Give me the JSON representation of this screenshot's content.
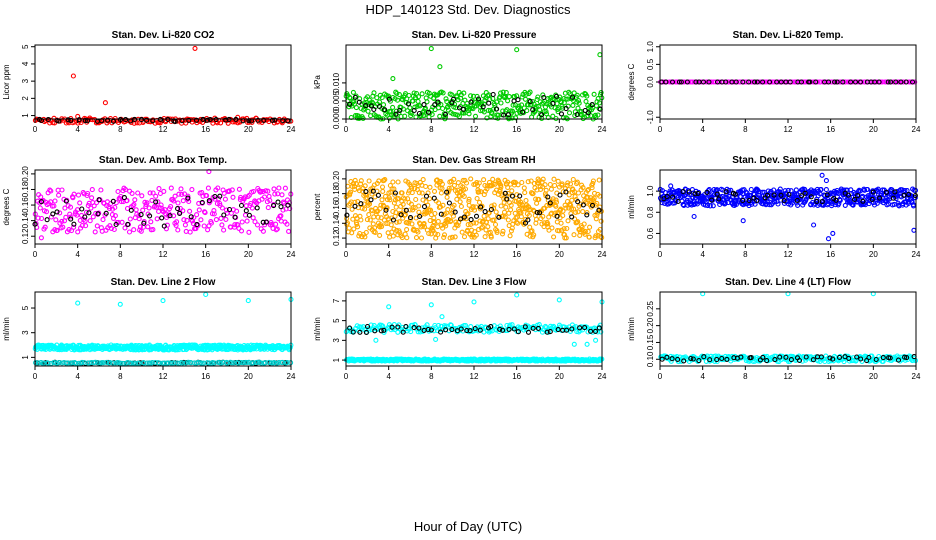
{
  "title": "HDP_140123  Std. Dev. Diagnostics",
  "xlabel": "Hour of Day (UTC)",
  "chart_data": [
    {
      "type": "scatter",
      "title": "Stan. Dev. Li-820 CO2",
      "ylabel": "Licor ppm",
      "xlim": [
        0,
        24
      ],
      "ylim": [
        0.8,
        5.1
      ],
      "xticks": [
        "0",
        "4",
        "8",
        "12",
        "16",
        "20",
        "24"
      ],
      "yticks": [
        "1",
        "2",
        "3",
        "4",
        "5"
      ],
      "series": [
        {
          "color": "#ff0000",
          "band": [
            0.55,
            0.85
          ],
          "density": 170,
          "jitter": 0.1,
          "outliers": [
            [
              3.6,
              3.3
            ],
            [
              6.6,
              1.75
            ],
            [
              15.0,
              4.9
            ],
            [
              4.0,
              0.95
            ],
            [
              19.0,
              0.9
            ]
          ]
        },
        {
          "color": "#000000",
          "band": [
            0.65,
            0.78
          ],
          "density": 44,
          "jitter": 0.25
        }
      ]
    },
    {
      "type": "scatter",
      "title": "Stan. Dev. Li-820 Pressure",
      "ylabel": "kPa",
      "xlim": [
        0,
        24
      ],
      "ylim": [
        0,
        0.0205
      ],
      "xticks": [
        "0",
        "4",
        "8",
        "12",
        "16",
        "20",
        "24"
      ],
      "yticks": [
        "0.000",
        "0.005",
        "0.010"
      ],
      "series": [
        {
          "color": "#00cc00",
          "band": [
            0.0,
            0.0075
          ],
          "density": 400,
          "jitter": 0.1,
          "outliers": [
            [
              8.0,
              0.0195
            ],
            [
              16.0,
              0.0192
            ],
            [
              23.8,
              0.0178
            ],
            [
              8.8,
              0.0145
            ],
            [
              4.4,
              0.0112
            ]
          ]
        },
        {
          "color": "#000000",
          "band": [
            0.001,
            0.007
          ],
          "density": 48,
          "jitter": 0.25
        }
      ]
    },
    {
      "type": "scatter",
      "title": "Stan. Dev. Li-820 Temp.",
      "ylabel": "degrees C",
      "xlim": [
        0,
        24
      ],
      "ylim": [
        -1.05,
        1.05
      ],
      "xticks": [
        "0",
        "4",
        "8",
        "12",
        "16",
        "20",
        "24"
      ],
      "yticks": [
        "-1.0",
        "0.0",
        "0.5",
        "1.0"
      ],
      "series": [
        {
          "color": "#ff00ff",
          "band": [
            0.0,
            0.0
          ],
          "density": 160,
          "jitter": 0.1
        },
        {
          "color": "#000000",
          "band": [
            0.0,
            0.0
          ],
          "density": 48,
          "jitter": 0.25
        }
      ]
    },
    {
      "type": "scatter",
      "title": "Stan. Dev. Amb. Box Temp.",
      "ylabel": "degrees C",
      "xlim": [
        0,
        24
      ],
      "ylim": [
        0.11,
        0.205
      ],
      "xticks": [
        "0",
        "4",
        "8",
        "12",
        "16",
        "20",
        "24"
      ],
      "yticks": [
        "0.12",
        "0.14",
        "0.16",
        "0.18",
        "0.20"
      ],
      "series": [
        {
          "color": "#ff00ff",
          "band": [
            0.125,
            0.182
          ],
          "density": 360,
          "jitter": 0.1,
          "outliers": [
            [
              16.3,
              0.203
            ],
            [
              0.6,
              0.118
            ]
          ]
        },
        {
          "color": "#000000",
          "band": [
            0.132,
            0.172
          ],
          "density": 48,
          "jitter": 0.25
        }
      ]
    },
    {
      "type": "scatter",
      "title": "Stan. Dev. Gas Stream RH",
      "ylabel": "percent",
      "xlim": [
        0,
        24
      ],
      "ylim": [
        0.112,
        0.212
      ],
      "xticks": [
        "0",
        "4",
        "8",
        "12",
        "16",
        "20",
        "24"
      ],
      "yticks": [
        "0.12",
        "0.14",
        "0.16",
        "0.18",
        "0.20"
      ],
      "series": [
        {
          "color": "#ffaa00",
          "band": [
            0.12,
            0.2
          ],
          "density": 700,
          "jitter": 0.1
        },
        {
          "color": "#000000",
          "band": [
            0.14,
            0.185
          ],
          "density": 48,
          "jitter": 0.25
        }
      ]
    },
    {
      "type": "scatter",
      "title": "Stan. Dev. Sample Flow",
      "ylabel": "ml/min",
      "xlim": [
        0,
        24
      ],
      "ylim": [
        0.5,
        1.2
      ],
      "xticks": [
        "0",
        "4",
        "8",
        "12",
        "16",
        "20",
        "24"
      ],
      "yticks": [
        "0.6",
        "0.8",
        "1.0"
      ],
      "series": [
        {
          "color": "#0000ff",
          "band": [
            0.86,
            1.02
          ],
          "density": 520,
          "jitter": 0.1,
          "outliers": [
            [
              15.2,
              1.15
            ],
            [
              15.6,
              1.1
            ],
            [
              15.8,
              0.55
            ],
            [
              16.2,
              0.6
            ],
            [
              14.4,
              0.68
            ],
            [
              7.8,
              0.72
            ],
            [
              23.8,
              0.63
            ],
            [
              3.2,
              0.76
            ],
            [
              1.0,
              1.05
            ]
          ]
        },
        {
          "color": "#000000",
          "band": [
            0.9,
            1.0
          ],
          "density": 48,
          "jitter": 0.25
        }
      ]
    },
    {
      "type": "scatter",
      "title": "Stan. Dev. Line 2 Flow",
      "ylabel": "ml/min",
      "xlim": [
        0,
        24
      ],
      "ylim": [
        0.3,
        6.3
      ],
      "xticks": [
        "0",
        "4",
        "8",
        "12",
        "16",
        "20",
        "24"
      ],
      "yticks": [
        "1",
        "3",
        "5"
      ],
      "series": [
        {
          "color": "#00ffff",
          "band": [
            1.6,
            2.0
          ],
          "density": 500,
          "jitter": 0.1,
          "outliers": [
            [
              4.0,
              5.4
            ],
            [
              8.0,
              5.3
            ],
            [
              12.0,
              5.6
            ],
            [
              16.0,
              6.1
            ],
            [
              20.0,
              5.6
            ],
            [
              24.0,
              5.7
            ]
          ]
        },
        {
          "color": "#000000",
          "band": [
            0.5,
            0.6
          ],
          "density": 48,
          "jitter": 0.25
        },
        {
          "color": "#00cccc",
          "band": [
            0.5,
            0.6
          ],
          "density": 120,
          "jitter": 0.1
        }
      ]
    },
    {
      "type": "scatter",
      "title": "Stan. Dev. Line 3 Flow",
      "ylabel": "ml/min",
      "xlim": [
        0,
        24
      ],
      "ylim": [
        0.4,
        7.9
      ],
      "xticks": [
        "0",
        "4",
        "8",
        "12",
        "16",
        "20",
        "24"
      ],
      "yticks": [
        "1",
        "3",
        "5",
        "7"
      ],
      "series": [
        {
          "color": "#00ffff",
          "band": [
            0.9,
            1.1
          ],
          "density": 420,
          "jitter": 0.1,
          "outliers": [
            [
              4.0,
              6.4
            ],
            [
              8.0,
              6.6
            ],
            [
              12.0,
              6.9
            ],
            [
              16.0,
              7.6
            ],
            [
              20.0,
              7.1
            ],
            [
              24.0,
              6.9
            ],
            [
              2.8,
              3.0
            ],
            [
              8.4,
              3.1
            ],
            [
              9.0,
              5.4
            ],
            [
              21.4,
              2.6
            ],
            [
              22.6,
              2.6
            ],
            [
              23.4,
              3.0
            ]
          ]
        },
        {
          "color": "#00ffff",
          "band": [
            3.8,
            4.6
          ],
          "density": 200,
          "jitter": 0.1
        },
        {
          "color": "#000000",
          "band": [
            3.8,
            4.4
          ],
          "density": 48,
          "jitter": 0.25
        }
      ]
    },
    {
      "type": "scatter",
      "title": "Stan. Dev. Line 4 (LT) Flow",
      "ylabel": "ml/min",
      "xlim": [
        0,
        24
      ],
      "ylim": [
        0.08,
        0.3
      ],
      "xticks": [
        "0",
        "4",
        "8",
        "12",
        "16",
        "20",
        "24"
      ],
      "yticks": [
        "0.10",
        "0.15",
        "0.20",
        "0.25"
      ],
      "series": [
        {
          "color": "#00ffff",
          "band": [
            0.093,
            0.11
          ],
          "density": 260,
          "jitter": 0.1,
          "outliers": [
            [
              4.0,
              0.295
            ],
            [
              12.0,
              0.295
            ],
            [
              20.0,
              0.295
            ]
          ]
        },
        {
          "color": "#000000",
          "band": [
            0.095,
            0.108
          ],
          "density": 48,
          "jitter": 0.25
        }
      ]
    }
  ]
}
